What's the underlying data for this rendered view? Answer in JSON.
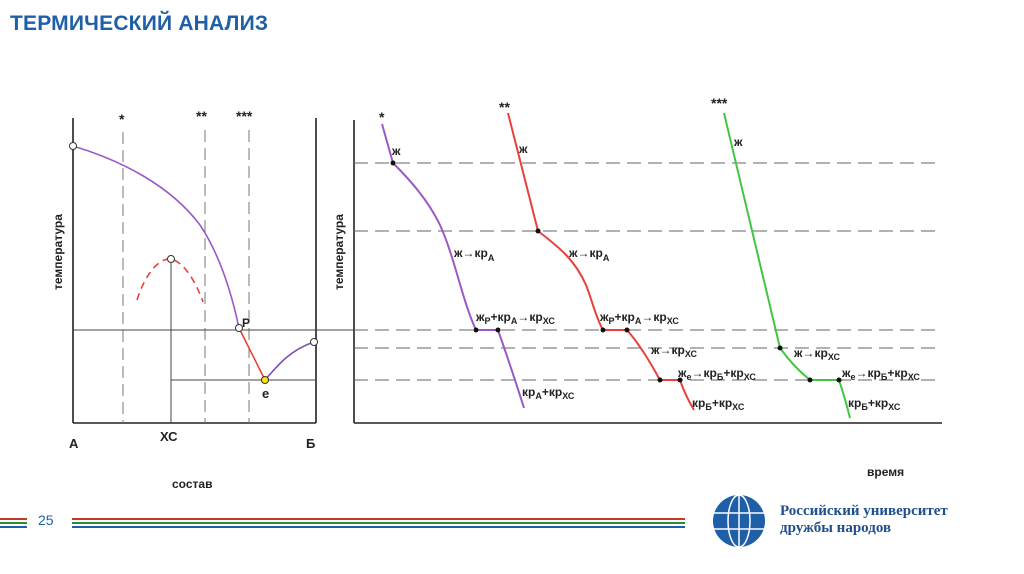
{
  "slide": {
    "title": "ТЕРМИЧЕСКИЙ АНАЛИЗ",
    "page_number": "25"
  },
  "phase_diagram": {
    "y_axis_label": "температура",
    "x_axis_label": "состав",
    "label_a": "А",
    "label_b": "Б",
    "label_xc": "ХС",
    "label_p": "P",
    "label_e": "е",
    "composition_markers": [
      "*",
      "**",
      "***"
    ]
  },
  "cooling_curves": {
    "y_axis_label": "температура",
    "x_axis_label": "время",
    "curve_markers": [
      "*",
      "**",
      "***"
    ],
    "zh": "ж",
    "zh_to_kr_a": "ж→кр",
    "zh_to_kr_xc": "ж→кр",
    "zh_p_text": "ж",
    "zh_e_text": "ж",
    "kr_a_kr_xc": "кр",
    "kr_b_kr_xc": "кр",
    "sub_a": "А",
    "sub_xc": "ХС",
    "sub_b": "Б",
    "sub_p": "P",
    "sub_e": "е",
    "plus": "+",
    "arrow": "→",
    "kr": "кр"
  },
  "colors": {
    "curve_1": "#9b59c8",
    "curve_2": "#e8403a",
    "curve_3": "#44c444",
    "title": "#1f5fa8"
  },
  "footer": {
    "org_line1": "Российский университет",
    "org_line2": "дружбы народов"
  }
}
